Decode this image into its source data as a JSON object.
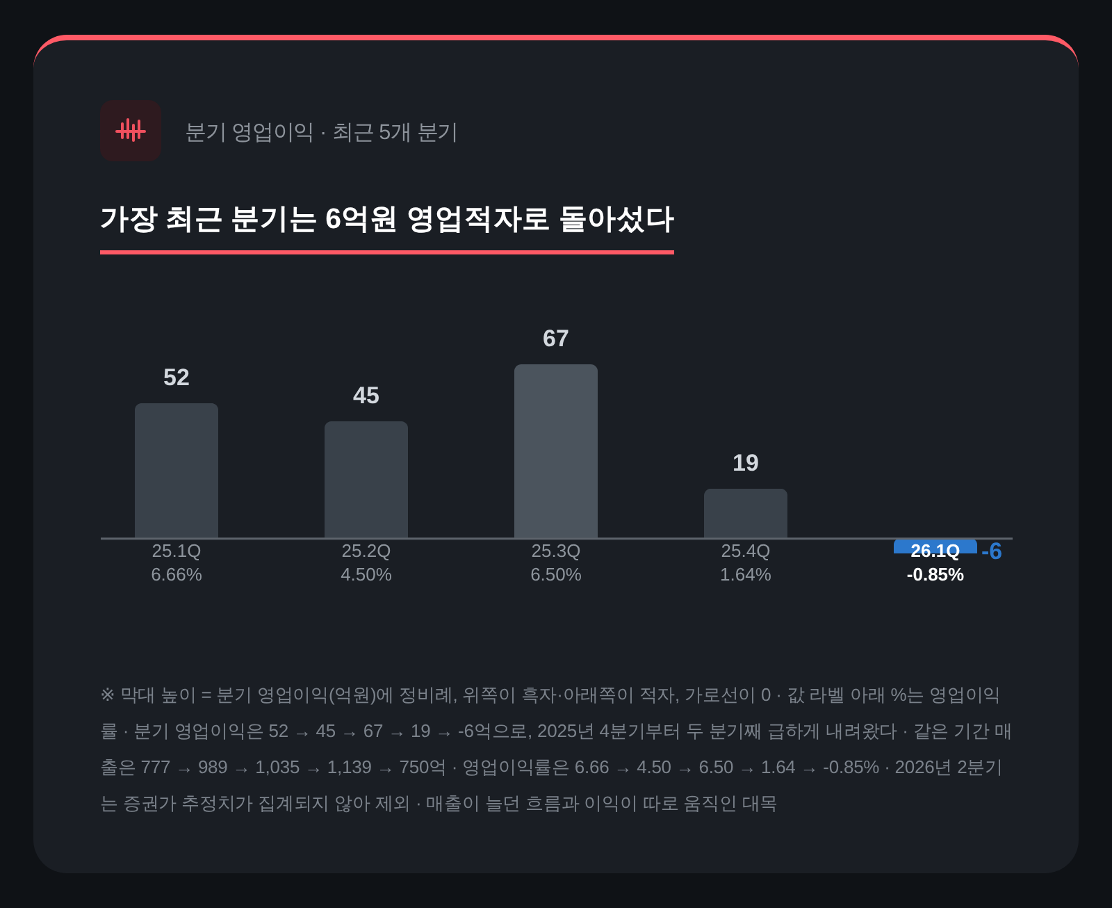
{
  "chart_data": {
    "type": "bar",
    "subtitle": "분기 영업이익 · 최근 5개 분기",
    "title": "가장 최근 분기는 6억원 영업적자로 돌아섰다",
    "categories": [
      "25.1Q\n6.66%",
      "25.2Q\n4.50%",
      "25.3Q\n6.50%",
      "25.4Q\n1.64%",
      "26.1Q\n-0.85%"
    ],
    "values": [
      52,
      45,
      67,
      19,
      -6
    ],
    "colors": [
      "#39414a",
      "#39414a",
      "#4b545d",
      "#39414a",
      "#2c78cc"
    ],
    "data_labels": true,
    "grid": false,
    "legend": false,
    "annotations": [
      "※ 막대 높이 = 분기 영업이익(억원)에 정비례, 위쪽이 흑자·아래쪽이 적자, 가로선이 0 · 값 라벨 아래 %는 영업이익률 · 분기 영업이익은 52 → 45 → 67 → 19 → -6억으로, 2025년 4분기부터 두 분기째 급하게 내려왔다 · 같은 기간 매출은 777 → 989 → 1,035 → 1,139 → 750억 · 영업이익률은 6.66 → 4.50 → 6.50 → 1.64 → -0.85% · 2026년 2분기는 증권가 추정치가 집계되지 않아 제외 · 매출이 늘던 흐름과 이익이 따로 움직인 대목"
    ]
  }
}
